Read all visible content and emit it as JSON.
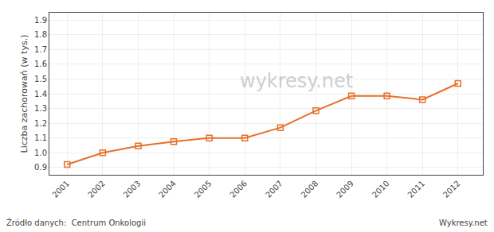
{
  "chart_data": {
    "type": "line",
    "x": [
      2001,
      2002,
      2003,
      2004,
      2005,
      2006,
      2007,
      2008,
      2009,
      2010,
      2011,
      2012
    ],
    "values": [
      0.92,
      1.0,
      1.045,
      1.075,
      1.1,
      1.1,
      1.17,
      1.285,
      1.385,
      1.385,
      1.36,
      1.47
    ],
    "color": "#e8702a",
    "marker": "square",
    "ylabel": "Liczba zachorowań (w tys.)",
    "annotations": [
      "wykresy.net",
      "Źródło danych:  Centrum Onkologii",
      "Wykresy.net"
    ],
    "xlim": [
      2000.5,
      2012.7
    ],
    "xticks": [
      2001,
      2002,
      2003,
      2004,
      2005,
      2006,
      2007,
      2008,
      2009,
      2010,
      2011,
      2012
    ],
    "ylim": [
      0.85,
      1.95
    ],
    "yticks": [
      0.9,
      {
        "value": 1.0,
        "label": "1.0"
      },
      1.1,
      1.2,
      1.3,
      1.4,
      1.5,
      1.6,
      1.7,
      1.8,
      1.9
    ],
    "grid": true
  }
}
